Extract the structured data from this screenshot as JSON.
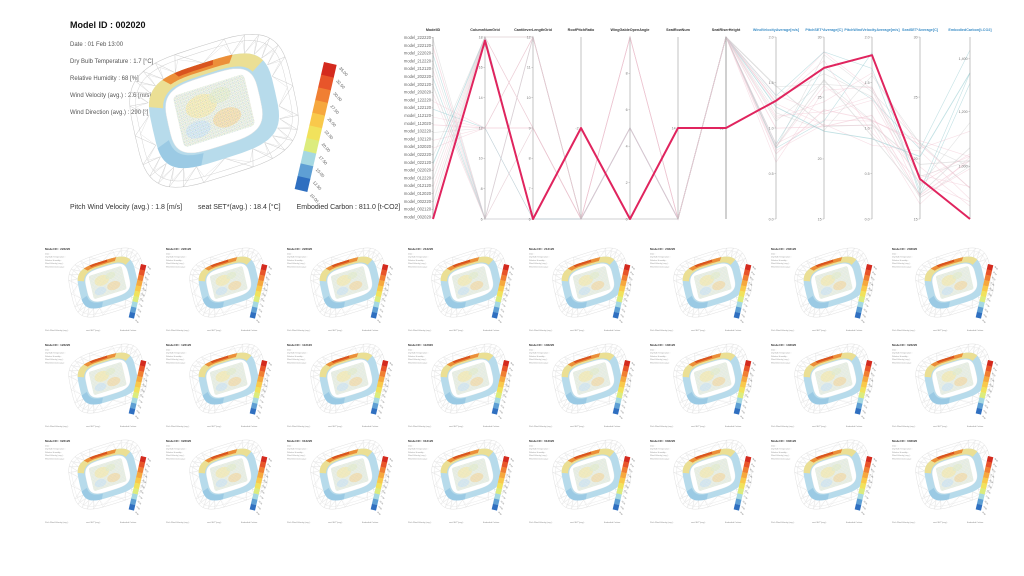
{
  "colors": {
    "highlight": "#e0245e",
    "input_axis_label": "#333333",
    "output_axis_label": "#3e8fc7",
    "bowl_blue": "#b3d9ea",
    "legend": [
      "#d42a1e",
      "#e8552a",
      "#f07f33",
      "#f6a83e",
      "#f9c94b",
      "#f1e25c",
      "#dcec7d",
      "#a5d8e2",
      "#5e9fd4",
      "#2f6fc0"
    ]
  },
  "selected_model": {
    "title": "Model ID : 002020",
    "info_lines": [
      "Date : 01 Feb 13:00",
      "Dry Bulb Temperature : 1.7 [°C]",
      "Relative Humidity : 68 [%]",
      "Wind Velocity (avg.) : 2.6 [m/s]",
      "Wind Direction (avg.) : 290 [°]"
    ],
    "caption": {
      "pitch_wind": "Pitch Wind Velocity (avg.) : 1.8 [m/s]",
      "seat_set": "seat SET*(avg.) : 18.4 [°C]",
      "embodied_carbon": "Embodied Carbon : 811.0 [t-CO2]"
    },
    "legend_ticks": [
      "35.00",
      "32.50",
      "30.00",
      "27.50",
      "25.00",
      "22.50",
      "20.00",
      "17.50",
      "15.00",
      "12.50",
      "10.00"
    ]
  },
  "chart_data": {
    "type": "line",
    "variant": "parallel-coordinates",
    "title": "",
    "legend_position": "none",
    "grid": false,
    "model_ids": [
      "model_222220",
      "model_222120",
      "model_222020",
      "model_212220",
      "model_212120",
      "model_202220",
      "model_202120",
      "model_202020",
      "model_122220",
      "model_122120",
      "model_112120",
      "model_112020",
      "model_102220",
      "model_102120",
      "model_102020",
      "model_022220",
      "model_022120",
      "model_022020",
      "model_012220",
      "model_012120",
      "model_012020",
      "model_002220",
      "model_002120",
      "model_002020"
    ],
    "highlighted_model": "model_002020",
    "axes": [
      {
        "label": "ModelID",
        "group": "input",
        "ticks": []
      },
      {
        "label": "ColumnNumGrid",
        "group": "input",
        "ticks": [
          {
            "t": "18",
            "p": 0
          },
          {
            "t": "16",
            "p": 0.167
          },
          {
            "t": "14",
            "p": 0.333
          },
          {
            "t": "12",
            "p": 0.5
          },
          {
            "t": "10",
            "p": 0.667
          },
          {
            "t": "8",
            "p": 0.833
          },
          {
            "t": "6",
            "p": 1
          }
        ]
      },
      {
        "label": "CantileverLengthGrid",
        "group": "input",
        "ticks": [
          {
            "t": "12",
            "p": 0
          },
          {
            "t": "11",
            "p": 0.167
          },
          {
            "t": "10",
            "p": 0.333
          },
          {
            "t": "9",
            "p": 0.5
          },
          {
            "t": "8",
            "p": 0.667
          },
          {
            "t": "7",
            "p": 0.833
          },
          {
            "t": "6",
            "p": 1
          }
        ]
      },
      {
        "label": "RoofPitchRatio",
        "group": "input",
        "ticks": [
          {
            "t": "-2",
            "p": 0.5
          }
        ]
      },
      {
        "label": "WingGableOpenAngle",
        "group": "input",
        "ticks": [
          {
            "t": "8",
            "p": 0.2
          },
          {
            "t": "6",
            "p": 0.4
          },
          {
            "t": "4",
            "p": 0.6
          },
          {
            "t": "2",
            "p": 0.8
          },
          {
            "t": "0",
            "p": 1
          }
        ]
      },
      {
        "label": "SeatRowNum",
        "group": "input",
        "ticks": [
          {
            "t": "14",
            "p": 0.5
          }
        ]
      },
      {
        "label": "SeatRiserHeight",
        "group": "input",
        "ticks": [
          {
            "t": "16",
            "p": 0.5
          }
        ]
      },
      {
        "label": "WindVelocityAverage[m/s]",
        "group": "output",
        "ticks": [
          {
            "t": "2.0",
            "p": 0
          },
          {
            "t": "1.5",
            "p": 0.25
          },
          {
            "t": "1.0",
            "p": 0.5
          },
          {
            "t": "0.5",
            "p": 0.75
          },
          {
            "t": "0.0",
            "p": 1
          }
        ]
      },
      {
        "label": "PitchSET*Average[C]",
        "group": "output",
        "ticks": [
          {
            "t": "30",
            "p": 0
          },
          {
            "t": "25",
            "p": 0.33
          },
          {
            "t": "20",
            "p": 0.67
          },
          {
            "t": "15",
            "p": 1
          }
        ]
      },
      {
        "label": "PitchWindVelocityAverage[m/s]",
        "group": "output",
        "ticks": [
          {
            "t": "2.0",
            "p": 0
          },
          {
            "t": "1.5",
            "p": 0.25
          },
          {
            "t": "1.0",
            "p": 0.5
          },
          {
            "t": "0.5",
            "p": 0.75
          },
          {
            "t": "0.0",
            "p": 1
          }
        ]
      },
      {
        "label": "SeatSET*Average[C]",
        "group": "output",
        "ticks": [
          {
            "t": "30",
            "p": 0
          },
          {
            "t": "25",
            "p": 0.33
          },
          {
            "t": "20",
            "p": 0.67
          },
          {
            "t": "15",
            "p": 1
          }
        ]
      },
      {
        "label": "EmbodiedCarbon[t-CO2]",
        "group": "output",
        "ticks": [
          {
            "t": "1,400",
            "p": 0.12
          },
          {
            "t": "1,200",
            "p": 0.41
          },
          {
            "t": "1,000",
            "p": 0.71
          }
        ]
      }
    ],
    "highlight_normalized": [
      1.0,
      0.02,
      1.0,
      0.5,
      1.0,
      0.5,
      0.5,
      0.35,
      0.17,
      0.1,
      0.78,
      1.0
    ],
    "highlight_values": {
      "ModelID": "model_002020",
      "ColumnNumGrid": 18,
      "CantileverLengthGrid": 6,
      "RoofPitchRatio": -2,
      "PitchWindVelocityAverage_ms": 1.8,
      "SeatSETAverage_C": 18.4,
      "EmbodiedCarbon_tCO2": 811.0
    }
  },
  "thumbnails": {
    "title_prefix": "Model ID : ",
    "info_labels": [
      "Date :",
      "Dry Bulb Temperature :",
      "Relative Humidity :",
      "Wind Velocity (avg.) :",
      "Wind Direction (avg.) :"
    ],
    "caption_labels": [
      "Pitch Wind Velocity (avg.) :",
      "seat SET*(avg.) :",
      "Embodied Carbon :"
    ],
    "items": [
      "222220",
      "222120",
      "222020",
      "212220",
      "212120",
      "202220",
      "202120",
      "202020",
      "122220",
      "122120",
      "112120",
      "112020",
      "102220",
      "102120",
      "102020",
      "022220",
      "022120",
      "022020",
      "012220",
      "012120",
      "012020",
      "002220",
      "002120",
      "002020"
    ]
  }
}
